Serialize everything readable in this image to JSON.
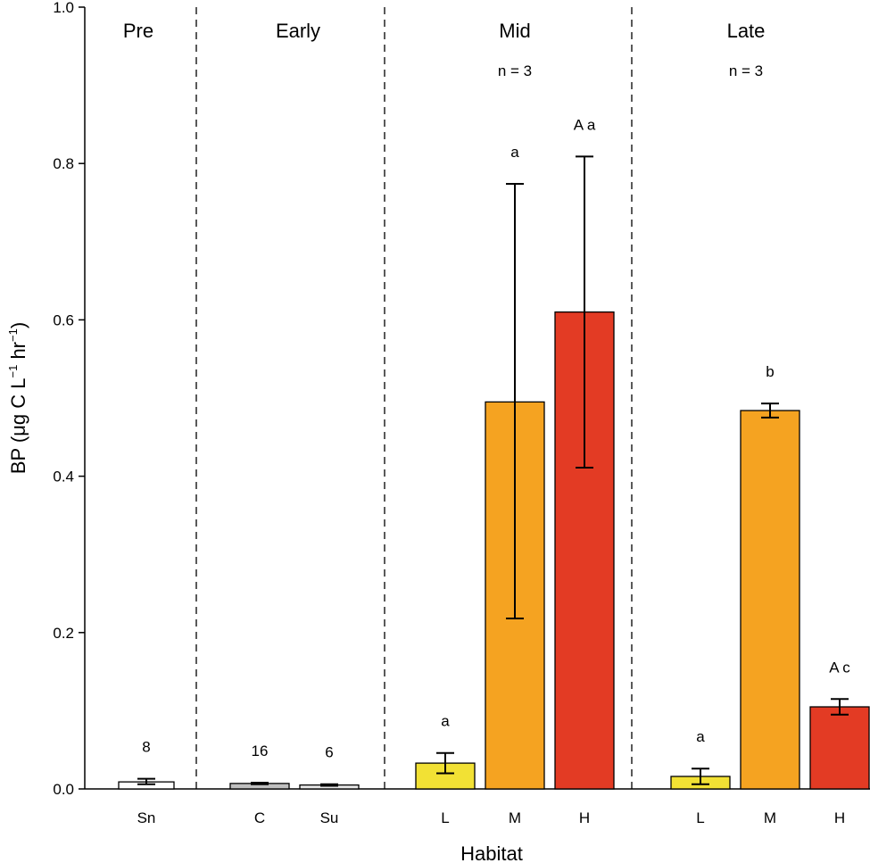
{
  "chart_data": {
    "type": "bar",
    "xlabel": "Habitat",
    "ylabel_parts": {
      "prefix": "BP (",
      "mu": "μ",
      "unit1": "g C L",
      "exp1": "−1",
      "unit2": " hr",
      "exp2": "−1",
      "suffix": ")"
    },
    "ylim": [
      0,
      1.0
    ],
    "yticks": [
      "0.0",
      "0.2",
      "0.4",
      "0.6",
      "0.8",
      "1.0"
    ],
    "phases": [
      {
        "name": "Pre",
        "note": ""
      },
      {
        "name": "Early",
        "note": ""
      },
      {
        "name": "Mid",
        "note": "n = 3"
      },
      {
        "name": "Late",
        "note": "n = 3"
      }
    ],
    "bars": [
      {
        "phase": "Pre",
        "category": "Sn",
        "value": 0.009,
        "err_low": 0.006,
        "err_high": 0.013,
        "label": "8",
        "color": "#ffffff"
      },
      {
        "phase": "Early",
        "category": "C",
        "value": 0.007,
        "err_low": 0.006,
        "err_high": 0.008,
        "label": "16",
        "color": "#bfbfbf"
      },
      {
        "phase": "Early",
        "category": "Su",
        "value": 0.005,
        "err_low": 0.004,
        "err_high": 0.006,
        "label": "6",
        "color": "#e6e6e6"
      },
      {
        "phase": "Mid",
        "category": "L",
        "value": 0.033,
        "err_low": 0.02,
        "err_high": 0.046,
        "label": "a",
        "color": "#f2e134"
      },
      {
        "phase": "Mid",
        "category": "M",
        "value": 0.495,
        "err_low": 0.218,
        "err_high": 0.774,
        "label": "a",
        "color": "#f5a321"
      },
      {
        "phase": "Mid",
        "category": "H",
        "value": 0.61,
        "err_low": 0.411,
        "err_high": 0.809,
        "label": "A a",
        "color": "#e33b24"
      },
      {
        "phase": "Late",
        "category": "L",
        "value": 0.016,
        "err_low": 0.006,
        "err_high": 0.026,
        "label": "a",
        "color": "#f2e134"
      },
      {
        "phase": "Late",
        "category": "M",
        "value": 0.484,
        "err_low": 0.475,
        "err_high": 0.493,
        "label": "b",
        "color": "#f5a321"
      },
      {
        "phase": "Late",
        "category": "H",
        "value": 0.105,
        "err_low": 0.095,
        "err_high": 0.115,
        "label": "A c",
        "color": "#e33b24"
      }
    ]
  }
}
